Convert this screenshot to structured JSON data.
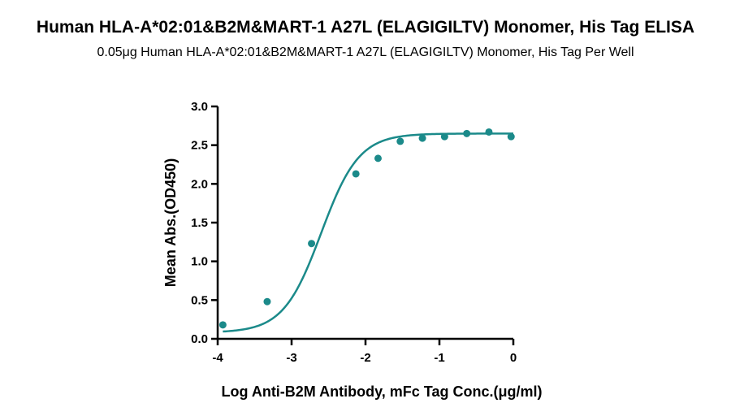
{
  "chart_data": {
    "type": "scatter",
    "title": "Human HLA-A*02:01&B2M&MART-1 A27L (ELAGIGILTV) Monomer, His Tag ELISA",
    "subtitle": "0.05μg Human HLA-A*02:01&B2M&MART-1 A27L (ELAGIGILTV) Monomer, His Tag Per Well",
    "xlabel": "Log Anti-B2M Antibody, mFc Tag Conc.(μg/ml)",
    "ylabel": "Mean Abs.(OD450)",
    "xlim": [
      -4,
      0
    ],
    "ylim": [
      0,
      3.0
    ],
    "xticks": [
      -4,
      -3,
      -2,
      -1,
      0
    ],
    "xtick_labels": [
      "-4",
      "-3",
      "-2",
      "-1",
      "0"
    ],
    "yticks": [
      0,
      0.5,
      1.0,
      1.5,
      2.0,
      2.5,
      3.0
    ],
    "ytick_labels": [
      "0.0",
      "0.5",
      "1.0",
      "1.5",
      "2.0",
      "2.5",
      "3.0"
    ],
    "series": [
      {
        "x": [
          -3.93,
          -3.33,
          -2.73,
          -2.13,
          -1.83,
          -1.53,
          -1.23,
          -0.93,
          -0.63,
          -0.33,
          -0.03
        ],
        "y": [
          0.18,
          0.48,
          1.23,
          2.13,
          2.33,
          2.55,
          2.59,
          2.61,
          2.65,
          2.67,
          2.61
        ],
        "color": "#1b8a8a"
      }
    ],
    "fit_curve": {
      "model": "4PL",
      "bottom": 0.08,
      "top": 2.65,
      "log_ec50": -2.6,
      "hill_slope": 1.7,
      "color": "#1b8a8a"
    },
    "grid": false,
    "legend": "none"
  }
}
